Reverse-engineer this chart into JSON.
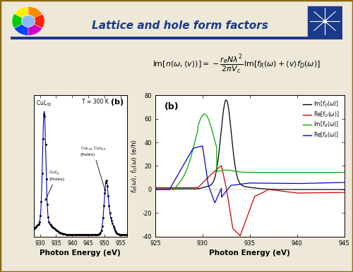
{
  "title": "Lattice and hole form factors",
  "title_color": "#1a3a8a",
  "bg_color": "#ede8d8",
  "border_color": "#8B6914",
  "header_line_color": "#1a3a8a",
  "left_plot": {
    "xlabel": "Photon Energy (eV)",
    "xticks": [
      930,
      935,
      940,
      945,
      950,
      955
    ],
    "xlim": [
      928,
      957
    ],
    "line_color": "#0000cc",
    "dot_color": "#000000"
  },
  "right_plot": {
    "xlabel": "Photon Energy (eV)",
    "ylabel": "f_R(ω), f_D(ω) (e/h)",
    "xlim": [
      925,
      945
    ],
    "ylim": [
      -40,
      80
    ],
    "xticks": [
      925,
      930,
      935,
      940,
      945
    ],
    "yticks": [
      -40,
      -20,
      0,
      20,
      40,
      60,
      80
    ],
    "panel_label": "(b)",
    "legend": [
      {
        "label": "Im[f_D(ω)]",
        "color": "#000000"
      },
      {
        "label": "Re[f_D(ω)]",
        "color": "#cc0000"
      },
      {
        "label": "Im[f_R(ω)]",
        "color": "#00aa00"
      },
      {
        "label": "Re[f_R(ω)]",
        "color": "#0000cc"
      }
    ]
  }
}
